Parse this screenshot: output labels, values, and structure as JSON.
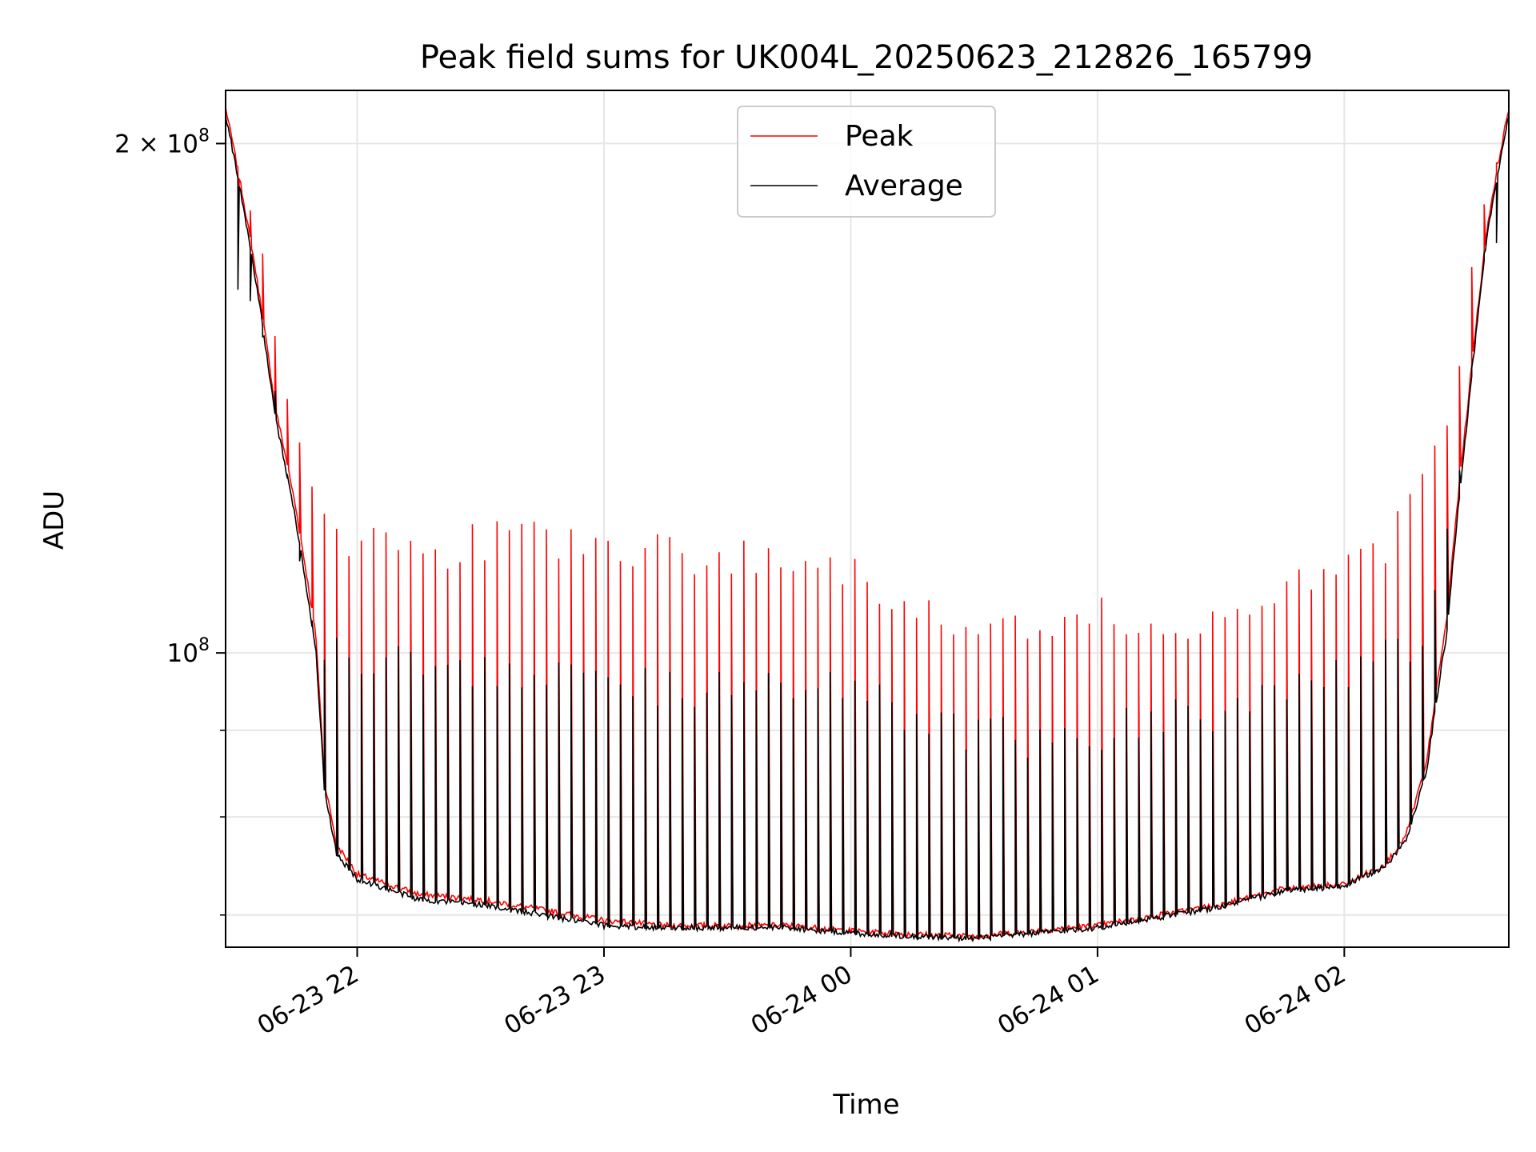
{
  "chart_data": {
    "type": "line",
    "title": "Peak field sums for UK004L_20250623_212826_165799",
    "xlabel": "Time",
    "ylabel": "ADU",
    "y_scale": "log",
    "xlim": [
      "2025-06-23 21:28",
      "2025-06-24 02:40"
    ],
    "ylim": [
      67000000,
      215000000
    ],
    "grid": true,
    "legend_position": "top-center",
    "x_ticks": [
      {
        "value": "2025-06-23 22:00",
        "label": "06-23 22"
      },
      {
        "value": "2025-06-23 23:00",
        "label": "06-23 23"
      },
      {
        "value": "2025-06-24 00:00",
        "label": "06-24 00"
      },
      {
        "value": "2025-06-24 01:00",
        "label": "06-24 01"
      },
      {
        "value": "2025-06-24 02:00",
        "label": "06-24 02"
      }
    ],
    "y_ticks": [
      {
        "value": 100000000,
        "base": "10",
        "exp": "8",
        "prefix": ""
      },
      {
        "value": 200000000,
        "base": "10",
        "exp": "8",
        "prefix": "2 × "
      }
    ],
    "y_minor_ticks": [
      70000000,
      80000000,
      90000000
    ],
    "spike_period_minutes": 3,
    "series": [
      {
        "name": "Peak",
        "color": "#ff0000",
        "baseline_x": [
          "2025-06-23 21:28",
          "2025-06-23 21:35",
          "2025-06-23 21:40",
          "2025-06-23 21:45",
          "2025-06-23 21:50",
          "2025-06-23 21:52",
          "2025-06-23 21:55",
          "2025-06-23 22:00",
          "2025-06-23 22:15",
          "2025-06-23 22:30",
          "2025-06-23 22:45",
          "2025-06-23 23:00",
          "2025-06-23 23:15",
          "2025-06-23 23:30",
          "2025-06-23 23:45",
          "2025-06-24 00:00",
          "2025-06-24 00:15",
          "2025-06-24 00:30",
          "2025-06-24 00:45",
          "2025-06-24 01:00",
          "2025-06-24 01:15",
          "2025-06-24 01:30",
          "2025-06-24 01:45",
          "2025-06-24 02:00",
          "2025-06-24 02:10",
          "2025-06-24 02:15",
          "2025-06-24 02:20",
          "2025-06-24 02:25",
          "2025-06-24 02:30",
          "2025-06-24 02:35",
          "2025-06-24 02:40"
        ],
        "baseline_y": [
          210000000,
          170000000,
          140000000,
          122000000,
          102000000,
          84000000,
          77000000,
          74000000,
          72000000,
          71500000,
          70500000,
          69500000,
          69000000,
          69000000,
          69000000,
          68500000,
          68200000,
          68000000,
          68500000,
          69000000,
          70000000,
          71000000,
          72500000,
          73000000,
          75000000,
          78000000,
          86000000,
          105000000,
          140000000,
          180000000,
          210000000
        ],
        "spike_y": [
          null,
          180000000,
          155000000,
          135000000,
          122000000,
          120000000,
          116000000,
          116000000,
          114000000,
          116000000,
          117000000,
          115000000,
          114000000,
          114000000,
          113000000,
          113000000,
          106000000,
          105000000,
          104000000,
          105000000,
          104000000,
          106000000,
          110000000,
          112000000,
          116000000,
          122000000,
          125000000,
          135000000,
          160000000,
          190000000,
          null
        ]
      },
      {
        "name": "Average",
        "color": "#000000",
        "baseline_x": [
          "2025-06-23 21:28",
          "2025-06-23 21:35",
          "2025-06-23 21:40",
          "2025-06-23 21:45",
          "2025-06-23 21:50",
          "2025-06-23 21:52",
          "2025-06-23 21:55",
          "2025-06-23 22:00",
          "2025-06-23 22:15",
          "2025-06-23 22:30",
          "2025-06-23 22:45",
          "2025-06-23 23:00",
          "2025-06-23 23:15",
          "2025-06-23 23:30",
          "2025-06-23 23:45",
          "2025-06-24 00:00",
          "2025-06-24 00:15",
          "2025-06-24 00:30",
          "2025-06-24 00:45",
          "2025-06-24 01:00",
          "2025-06-24 01:15",
          "2025-06-24 01:30",
          "2025-06-24 01:45",
          "2025-06-24 02:00",
          "2025-06-24 02:10",
          "2025-06-24 02:15",
          "2025-06-24 02:20",
          "2025-06-24 02:25",
          "2025-06-24 02:30",
          "2025-06-24 02:35",
          "2025-06-24 02:40"
        ],
        "baseline_y": [
          208000000,
          168000000,
          138000000,
          120000000,
          100000000,
          83000000,
          76000000,
          73500000,
          71500000,
          71000000,
          70000000,
          69000000,
          68800000,
          68800000,
          68800000,
          68300000,
          68000000,
          67800000,
          68300000,
          68800000,
          69800000,
          70800000,
          72300000,
          72800000,
          74800000,
          77500000,
          85000000,
          103000000,
          138000000,
          178000000,
          208000000
        ],
        "spike_y": [
          null,
          160000000,
          140000000,
          118000000,
          104000000,
          102000000,
          100000000,
          100000000,
          98000000,
          97000000,
          98000000,
          97000000,
          95000000,
          95000000,
          96000000,
          96000000,
          92000000,
          90000000,
          89000000,
          90000000,
          91000000,
          92000000,
          95000000,
          97000000,
          99000000,
          100000000,
          104000000,
          115000000,
          140000000,
          180000000,
          null
        ]
      }
    ]
  }
}
